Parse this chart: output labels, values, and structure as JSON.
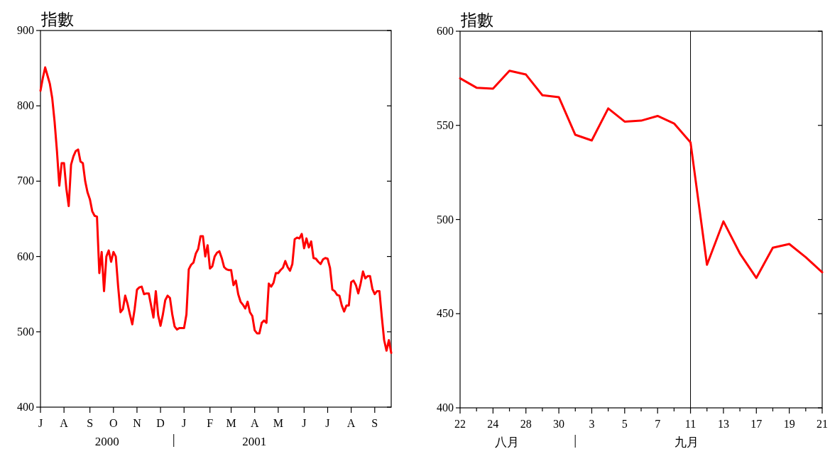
{
  "chart_data": [
    {
      "type": "line",
      "title": "指數",
      "color": "#ff0000",
      "categories": [
        "J",
        null,
        null,
        null,
        null,
        null,
        null,
        null,
        null,
        null,
        "A",
        null,
        null,
        null,
        null,
        null,
        null,
        null,
        null,
        null,
        null,
        "S",
        null,
        null,
        null,
        null,
        null,
        null,
        null,
        null,
        null,
        "O",
        null,
        null,
        null,
        null,
        null,
        null,
        null,
        null,
        null,
        "N",
        null,
        null,
        null,
        null,
        null,
        null,
        null,
        null,
        null,
        "D",
        null,
        null,
        null,
        null,
        null,
        null,
        null,
        null,
        null,
        "J",
        null,
        null,
        null,
        null,
        null,
        null,
        null,
        null,
        null,
        null,
        "F",
        null,
        null,
        null,
        null,
        null,
        null,
        null,
        null,
        "M",
        null,
        null,
        null,
        null,
        null,
        null,
        null,
        null,
        null,
        "A",
        null,
        null,
        null,
        null,
        null,
        null,
        null,
        null,
        null,
        "M",
        null,
        null,
        null,
        null,
        null,
        null,
        null,
        null,
        null,
        null,
        "J",
        null,
        null,
        null,
        null,
        null,
        null,
        null,
        null,
        null,
        "J",
        null,
        null,
        null,
        null,
        null,
        null,
        null,
        null,
        null,
        "A",
        null,
        null,
        null,
        null,
        null,
        null,
        null,
        null,
        null,
        "S",
        null,
        null,
        null,
        null,
        null,
        null,
        null
      ],
      "values": [
        820,
        837,
        851,
        840,
        829,
        810,
        779,
        740,
        694,
        724,
        724,
        690,
        667,
        722,
        733,
        740,
        742,
        726,
        724,
        700,
        685,
        676,
        660,
        654,
        653,
        578,
        606,
        554,
        600,
        608,
        593,
        606,
        600,
        560,
        526,
        530,
        548,
        537,
        523,
        510,
        530,
        556,
        559,
        560,
        550,
        551,
        551,
        535,
        519,
        554,
        522,
        508,
        523,
        542,
        548,
        545,
        523,
        507,
        503,
        505,
        505,
        505,
        523,
        583,
        589,
        592,
        604,
        610,
        627,
        627,
        600,
        615,
        584,
        587,
        600,
        605,
        607,
        598,
        586,
        583,
        582,
        582,
        562,
        568,
        550,
        540,
        536,
        531,
        540,
        526,
        521,
        502,
        498,
        498,
        512,
        515,
        512,
        564,
        560,
        565,
        578,
        578,
        582,
        585,
        594,
        586,
        581,
        590,
        623,
        625,
        624,
        630,
        611,
        624,
        612,
        620,
        598,
        597,
        593,
        590,
        596,
        598,
        597,
        585,
        556,
        554,
        549,
        548,
        535,
        527,
        535,
        535,
        566,
        568,
        562,
        551,
        564,
        580,
        571,
        574,
        574,
        557,
        550,
        554,
        554,
        520,
        489,
        475,
        489,
        472
      ],
      "ylim": [
        400,
        900
      ],
      "yticks": [
        400,
        500,
        600,
        700,
        800,
        900
      ],
      "annotations": [
        "2000",
        "2001"
      ]
    },
    {
      "type": "line",
      "title": "指數",
      "color": "#ff0000",
      "categories": [
        "22",
        null,
        "24",
        null,
        "28",
        null,
        "30",
        null,
        "3",
        null,
        "5",
        null,
        "7",
        null,
        "11",
        null,
        "13",
        null,
        "17",
        null,
        "19",
        null,
        "21"
      ],
      "values": [
        575,
        570,
        569.5,
        579,
        577,
        566,
        565,
        545,
        542,
        559,
        552,
        552.5,
        555,
        551,
        541,
        476,
        499,
        482,
        469,
        485,
        487,
        480,
        472
      ],
      "ylim": [
        400,
        600
      ],
      "yticks": [
        400,
        450,
        500,
        550,
        600
      ],
      "ref_lines": [
        {
          "axis": "x",
          "value": "11",
          "color": "#000000"
        }
      ],
      "annotations": [
        "八月",
        "九月"
      ]
    }
  ]
}
